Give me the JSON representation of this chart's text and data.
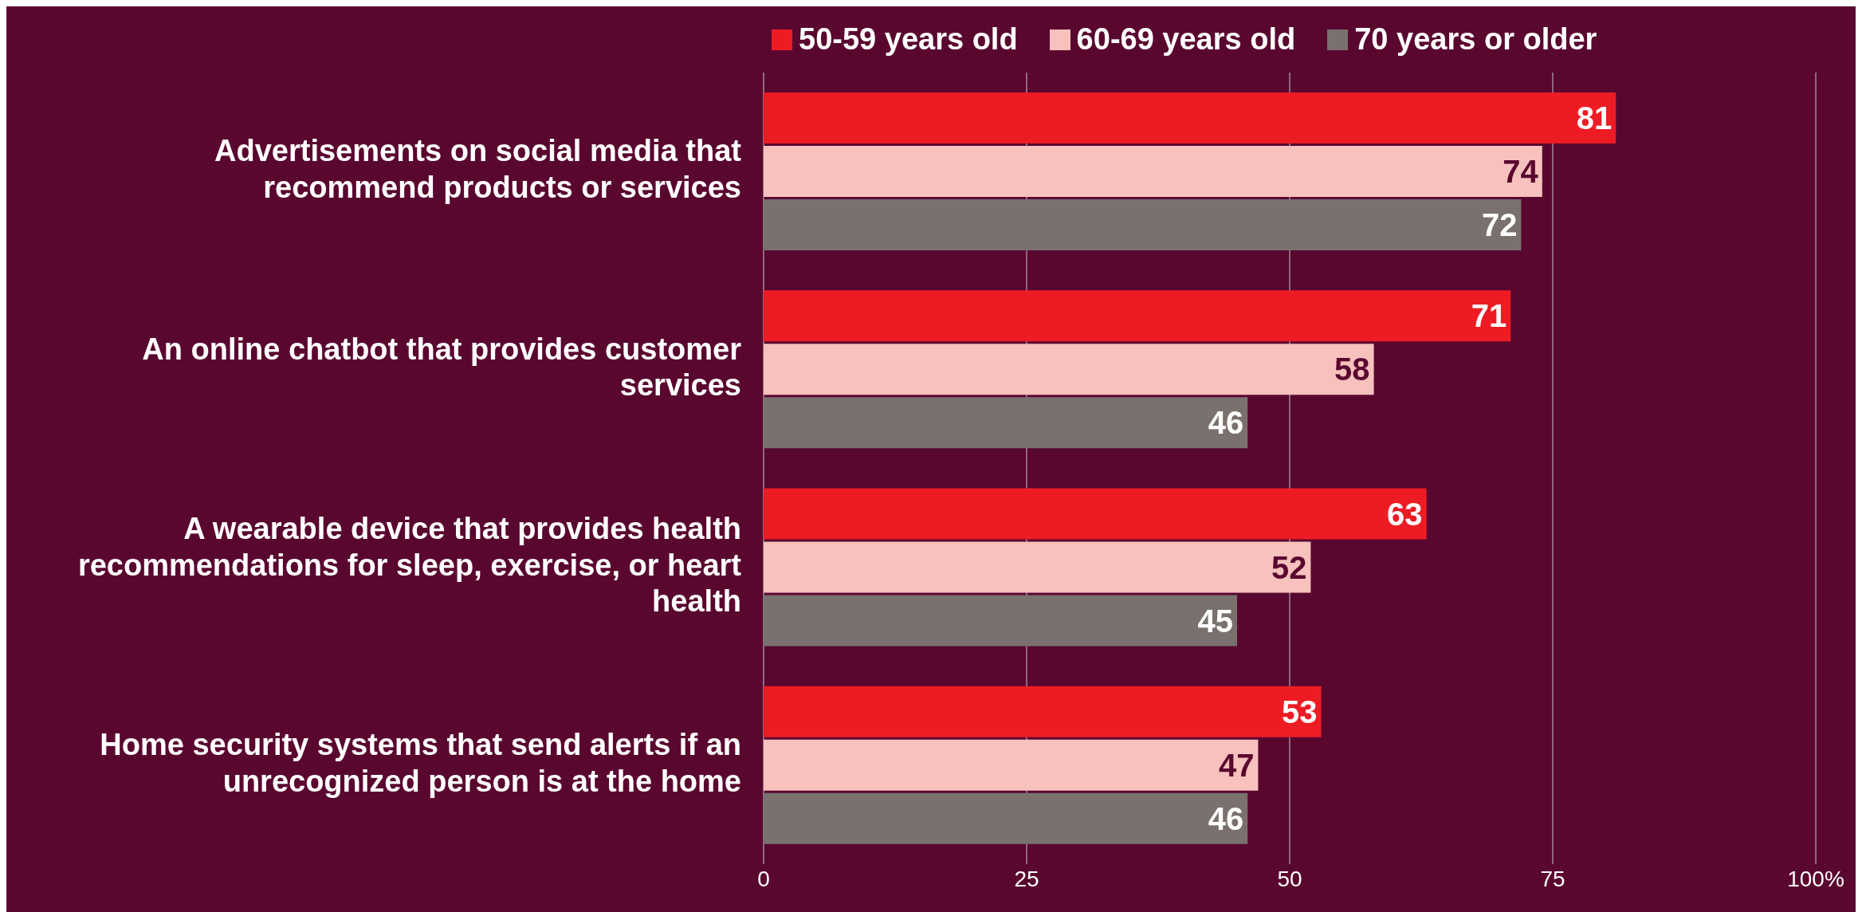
{
  "chart_data": {
    "type": "bar",
    "orientation": "horizontal",
    "categories": [
      "Advertisements on social media that recommend products or services",
      "An online chatbot that provides customer services",
      "A wearable device that provides health recommendations for sleep, exercise, or heart health",
      "Home security systems that send alerts if an unrecognized person is at the home"
    ],
    "series": [
      {
        "name": "50-59 years old",
        "color": "#ed1c24",
        "values": [
          81,
          71,
          63,
          53
        ]
      },
      {
        "name": "60-69 years old",
        "color": "#f7c1bd",
        "values": [
          74,
          58,
          52,
          47
        ]
      },
      {
        "name": "70 years or older",
        "color": "#7a716f",
        "values": [
          72,
          46,
          45,
          46
        ]
      }
    ],
    "xlim": [
      0,
      100
    ],
    "xticks": [
      0,
      25,
      50,
      75,
      {
        "value": 100,
        "label": "100%"
      }
    ],
    "grid": "x",
    "legend": "top",
    "data_labels": true
  }
}
